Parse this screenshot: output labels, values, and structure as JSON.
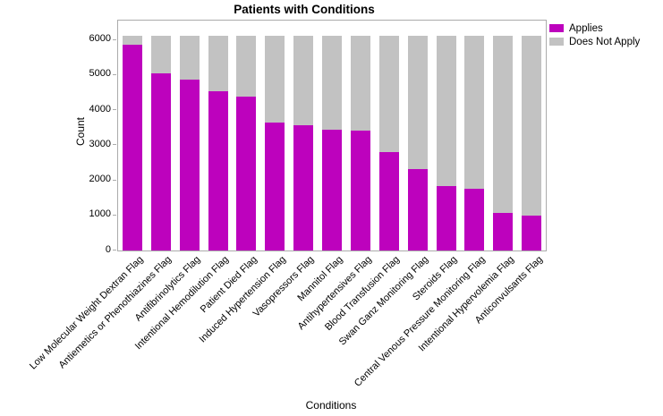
{
  "title": "Patients with Conditions",
  "axes": {
    "ylabel": "Count",
    "xlabel": "Conditions"
  },
  "legend": {
    "items": [
      {
        "label": "Applies",
        "color": "#bd02bd"
      },
      {
        "label": "Does Not Apply",
        "color": "#c2c2c2"
      }
    ]
  },
  "chart_data": {
    "type": "bar",
    "stacked": true,
    "title": "Patients with Conditions",
    "xlabel": "Conditions",
    "ylabel": "Count",
    "ylim": [
      0,
      6550
    ],
    "yticks": [
      0,
      1000,
      2000,
      3000,
      4000,
      5000,
      6000
    ],
    "grid": false,
    "legend_position": "top-right",
    "total_per_bar": 6120,
    "categories": [
      "Low Molecular Weight Dextran Flag",
      "Antiemetics or Phenothiazines Flag",
      "Antifibrinolytics Flag",
      "Intentional Hemodilution Flag",
      "Patient Died Flag",
      "Induced Hypertension Flag",
      "Vasopressors Flag",
      "Mannitol Flag",
      "Antihypertensives Flag",
      "Blood Transfusion Flag",
      "Swan Ganz Monitoring Flag",
      "Steroids Flag",
      "Central Venous Pressure Monitoring Flag",
      "Intentional Hypervolemia Flag",
      "Anticonvulsants Flag"
    ],
    "series": [
      {
        "name": "Applies",
        "color": "#bd02bd",
        "values": [
          5870,
          5040,
          4870,
          4550,
          4380,
          3650,
          3560,
          3445,
          3420,
          2795,
          2310,
          1845,
          1770,
          1080,
          990
        ]
      },
      {
        "name": "Does Not Apply",
        "color": "#c2c2c2",
        "values": [
          250,
          1080,
          1250,
          1570,
          1740,
          2470,
          2560,
          2675,
          2700,
          3325,
          3810,
          4275,
          4350,
          5040,
          5130
        ]
      }
    ]
  },
  "colors": {
    "axis_line": "#ababab",
    "applies": "#bd02bd",
    "does_not_apply": "#c2c2c2",
    "text": "#000000"
  }
}
